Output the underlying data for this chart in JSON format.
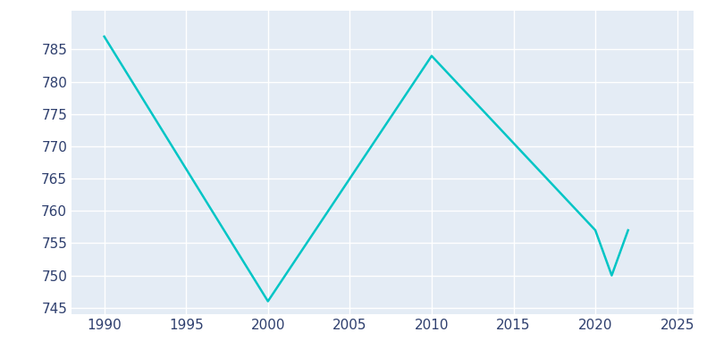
{
  "years": [
    1990,
    2000,
    2010,
    2020,
    2021,
    2022
  ],
  "population": [
    787,
    746,
    784,
    757,
    750,
    757
  ],
  "line_color": "#00C5C5",
  "background_color": "#E4ECF5",
  "outer_background": "#FFFFFF",
  "grid_color": "#FFFFFF",
  "text_color": "#2E3F6E",
  "xlim": [
    1988,
    2026
  ],
  "ylim": [
    744,
    791
  ],
  "xticks": [
    1990,
    1995,
    2000,
    2005,
    2010,
    2015,
    2020,
    2025
  ],
  "yticks": [
    745,
    750,
    755,
    760,
    765,
    770,
    775,
    780,
    785
  ],
  "linewidth": 1.8,
  "figsize": [
    8.0,
    4.0
  ],
  "dpi": 100
}
